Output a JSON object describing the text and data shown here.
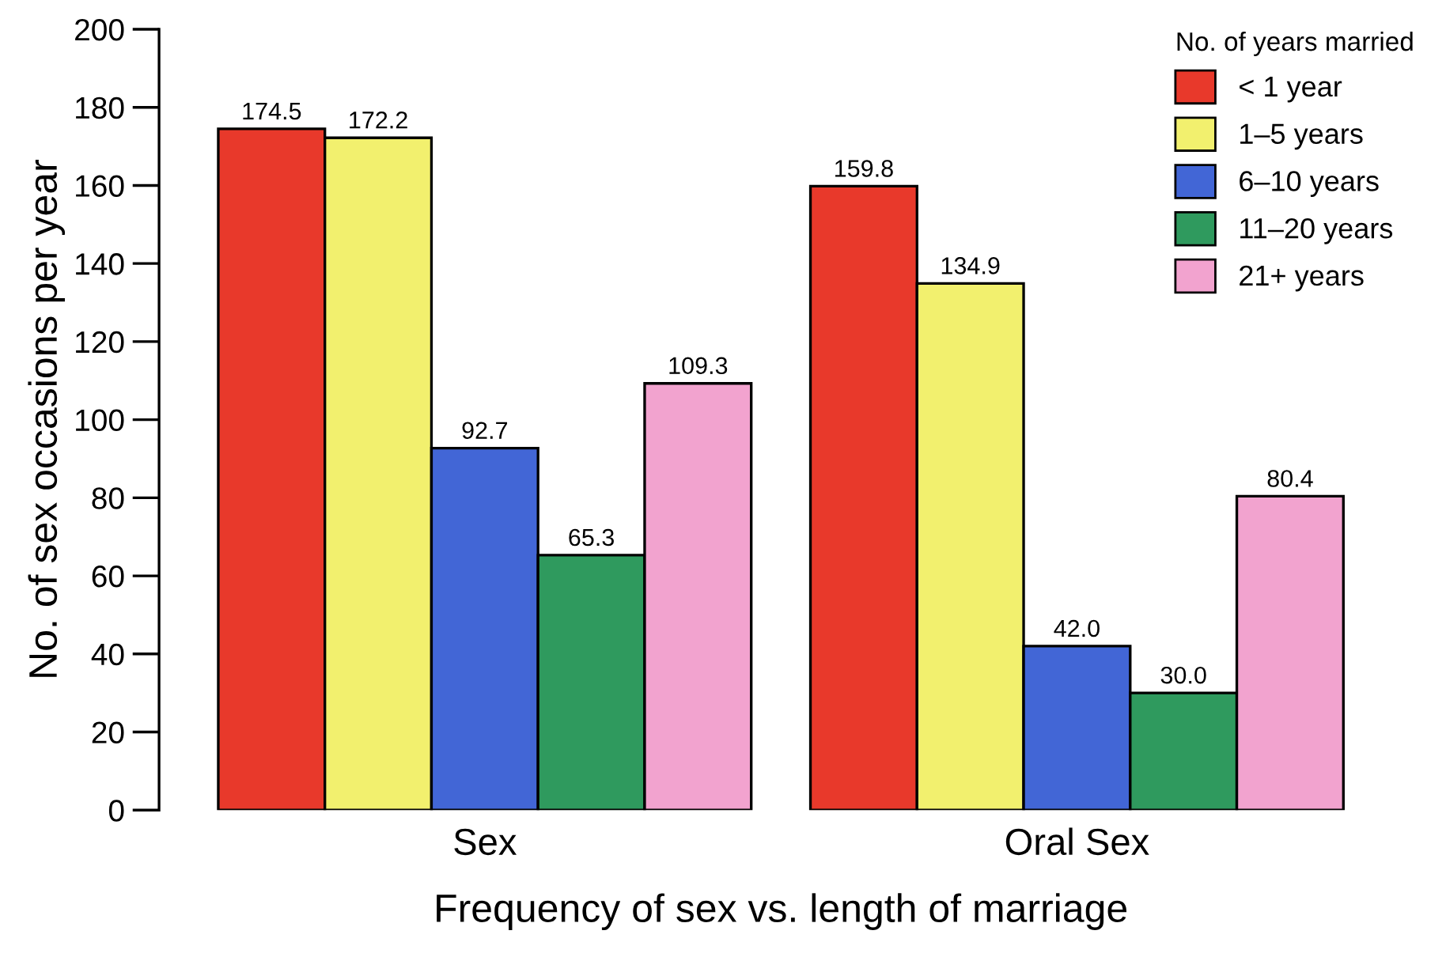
{
  "chart_data": {
    "type": "bar",
    "xlabel": "Frequency of sex vs. length of marriage",
    "ylabel": "No. of sex occasions per year",
    "legend_title": "No. of years married",
    "categories": [
      "Sex",
      "Oral Sex"
    ],
    "series": [
      {
        "name": "< 1 year",
        "color": "#e8392b",
        "values": [
          174.5,
          159.8
        ],
        "value_labels": [
          "174.5",
          "159.8"
        ]
      },
      {
        "name": "1–5 years",
        "color": "#f2f06e",
        "values": [
          172.2,
          134.9
        ],
        "value_labels": [
          "172.2",
          "134.9"
        ]
      },
      {
        "name": "6–10 years",
        "color": "#4266d6",
        "values": [
          92.7,
          42.0
        ],
        "value_labels": [
          "92.7",
          "42.0"
        ]
      },
      {
        "name": "11–20 years",
        "color": "#2f9a5e",
        "values": [
          65.3,
          30.0
        ],
        "value_labels": [
          "65.3",
          "30.0"
        ]
      },
      {
        "name": "21+ years",
        "color": "#f2a3cf",
        "values": [
          109.3,
          80.4
        ],
        "value_labels": [
          "109.3",
          "80.4"
        ]
      }
    ],
    "ylim": [
      0,
      200
    ],
    "yticks": [
      0,
      20,
      40,
      60,
      80,
      100,
      120,
      140,
      160,
      180,
      200
    ],
    "grid": false,
    "legend": "top right"
  }
}
